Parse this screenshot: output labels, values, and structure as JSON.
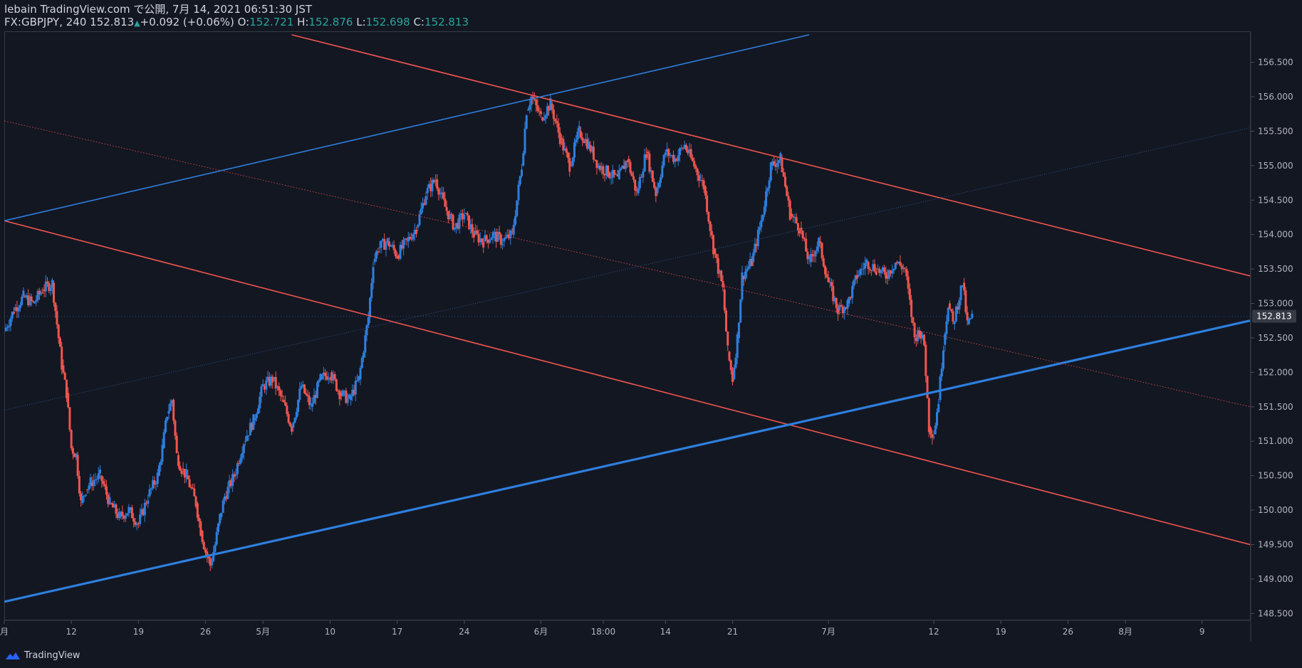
{
  "header": {
    "publisher": "lebain TradingView.com で公開, 7月 14, 2021 06:51:30 JST",
    "symbol_line": "FX:GBPJPY, 240 152.813",
    "change": "+0.092 (+0.06%)",
    "o_label": "O:",
    "o_val": "152.721",
    "h_label": "H:",
    "h_val": "152.876",
    "l_label": "L:",
    "l_val": "152.698",
    "c_label": "C:",
    "c_val": "152.813"
  },
  "footer": {
    "brand": "TradingView"
  },
  "chart_data": {
    "type": "candlestick",
    "symbol": "GBPJPY",
    "last_price": 152.813,
    "ylim": [
      148.4,
      156.95
    ],
    "y_ticks": [
      148.5,
      149.0,
      149.5,
      150.0,
      150.5,
      151.0,
      151.5,
      152.0,
      152.5,
      153.0,
      153.5,
      154.0,
      154.5,
      155.0,
      155.5,
      156.0,
      156.5
    ],
    "y_tick_labels": [
      "148.500",
      "149.000",
      "149.500",
      "150.000",
      "150.500",
      "151.000",
      "151.500",
      "152.000",
      "152.500",
      "153.000",
      "153.500",
      "154.000",
      "154.500",
      "155.000",
      "155.500",
      "156.000",
      "156.500"
    ],
    "x_ticks": [
      {
        "label": "月",
        "day": 0
      },
      {
        "label": "12",
        "day": 7
      },
      {
        "label": "19",
        "day": 14
      },
      {
        "label": "26",
        "day": 21
      },
      {
        "label": "5月",
        "day": 27
      },
      {
        "label": "10",
        "day": 34
      },
      {
        "label": "17",
        "day": 41
      },
      {
        "label": "24",
        "day": 48
      },
      {
        "label": "6月",
        "day": 56
      },
      {
        "label": "18:00",
        "day": 62.5
      },
      {
        "label": "14",
        "day": 69
      },
      {
        "label": "21",
        "day": 76
      },
      {
        "label": "7月",
        "day": 86
      },
      {
        "label": "12",
        "day": 97
      },
      {
        "label": "19",
        "day": 104
      },
      {
        "label": "26",
        "day": 111
      },
      {
        "label": "8月",
        "day": 117
      },
      {
        "label": "9",
        "day": 125
      }
    ],
    "x_range_days": [
      0,
      130
    ],
    "path_points": [
      [
        0,
        152.6
      ],
      [
        1,
        152.9
      ],
      [
        2,
        153.1
      ],
      [
        3,
        153.0
      ],
      [
        4,
        153.2
      ],
      [
        5,
        153.3
      ],
      [
        6,
        152.1
      ],
      [
        6.5,
        151.7
      ],
      [
        7,
        150.9
      ],
      [
        7.5,
        150.8
      ],
      [
        8,
        150.1
      ],
      [
        8.5,
        150.3
      ],
      [
        9,
        150.4
      ],
      [
        10,
        150.5
      ],
      [
        11,
        150.1
      ],
      [
        12,
        149.9
      ],
      [
        13,
        150.0
      ],
      [
        14,
        149.8
      ],
      [
        15,
        150.2
      ],
      [
        16,
        150.5
      ],
      [
        16.5,
        150.9
      ],
      [
        17,
        151.4
      ],
      [
        17.5,
        151.6
      ],
      [
        18,
        150.8
      ],
      [
        18.5,
        150.6
      ],
      [
        19,
        150.5
      ],
      [
        20,
        150.1
      ],
      [
        20.5,
        149.7
      ],
      [
        21,
        149.4
      ],
      [
        21.5,
        149.2
      ],
      [
        22,
        149.5
      ],
      [
        22.5,
        149.9
      ],
      [
        23,
        150.2
      ],
      [
        24,
        150.5
      ],
      [
        25,
        151.0
      ],
      [
        26,
        151.3
      ],
      [
        27,
        151.8
      ],
      [
        28,
        151.9
      ],
      [
        29,
        151.6
      ],
      [
        30,
        151.2
      ],
      [
        31,
        151.8
      ],
      [
        32,
        151.5
      ],
      [
        33,
        151.9
      ],
      [
        34,
        152.0
      ],
      [
        35,
        151.7
      ],
      [
        36,
        151.6
      ],
      [
        37,
        151.9
      ],
      [
        38,
        152.8
      ],
      [
        38.5,
        153.6
      ],
      [
        39,
        153.8
      ],
      [
        40,
        153.9
      ],
      [
        41,
        153.7
      ],
      [
        42,
        153.9
      ],
      [
        43,
        154.1
      ],
      [
        44,
        154.6
      ],
      [
        45,
        154.8
      ],
      [
        46,
        154.4
      ],
      [
        47,
        154.1
      ],
      [
        48,
        154.3
      ],
      [
        49,
        154.0
      ],
      [
        50,
        153.9
      ],
      [
        51,
        154.0
      ],
      [
        52,
        153.9
      ],
      [
        53,
        154.0
      ],
      [
        54,
        155.0
      ],
      [
        54.5,
        155.8
      ],
      [
        55,
        156.0
      ],
      [
        56,
        155.7
      ],
      [
        57,
        155.9
      ],
      [
        58,
        155.4
      ],
      [
        59,
        155.0
      ],
      [
        60,
        155.5
      ],
      [
        61,
        155.3
      ],
      [
        62,
        155.0
      ],
      [
        63,
        154.9
      ],
      [
        64,
        154.8
      ],
      [
        65,
        155.1
      ],
      [
        66,
        154.6
      ],
      [
        67,
        155.2
      ],
      [
        68,
        154.6
      ],
      [
        69,
        155.2
      ],
      [
        70,
        155.1
      ],
      [
        71,
        155.3
      ],
      [
        72,
        155.0
      ],
      [
        73,
        154.7
      ],
      [
        74,
        153.8
      ],
      [
        75,
        153.2
      ],
      [
        75.5,
        152.3
      ],
      [
        76,
        151.9
      ],
      [
        76.5,
        152.5
      ],
      [
        77,
        153.4
      ],
      [
        78,
        153.6
      ],
      [
        79,
        154.2
      ],
      [
        80,
        155.0
      ],
      [
        81,
        155.1
      ],
      [
        82,
        154.3
      ],
      [
        83,
        154.1
      ],
      [
        84,
        153.6
      ],
      [
        85,
        153.9
      ],
      [
        86,
        153.3
      ],
      [
        87,
        152.9
      ],
      [
        88,
        153.0
      ],
      [
        89,
        153.4
      ],
      [
        90,
        153.6
      ],
      [
        91,
        153.5
      ],
      [
        92,
        153.4
      ],
      [
        93,
        153.6
      ],
      [
        94,
        153.5
      ],
      [
        95,
        152.5
      ],
      [
        95.5,
        152.6
      ],
      [
        96,
        152.4
      ],
      [
        96.5,
        151.2
      ],
      [
        97,
        151.1
      ],
      [
        97.5,
        151.6
      ],
      [
        98,
        152.4
      ],
      [
        98.5,
        153.0
      ],
      [
        99,
        152.7
      ],
      [
        100,
        153.3
      ],
      [
        100.5,
        152.7
      ],
      [
        101,
        152.8
      ]
    ],
    "trendlines": [
      {
        "from": [
          0,
          154.2
        ],
        "to": [
          130,
          149.5
        ],
        "color": "#f0554f",
        "width": 1.6
      },
      {
        "from": [
          30,
          156.9
        ],
        "to": [
          130,
          153.4
        ],
        "color": "#f0554f",
        "width": 1.6
      },
      {
        "from": [
          0,
          154.2
        ],
        "to": [
          84,
          156.9
        ],
        "color": "#2e7fde",
        "width": 1.6
      },
      {
        "from": [
          0,
          148.67
        ],
        "to": [
          130,
          152.75
        ],
        "color": "#2e7fde",
        "width": 3.2
      },
      {
        "from": [
          0,
          155.65
        ],
        "to": [
          130,
          151.5
        ],
        "color": "#c0433f",
        "width": 0.8,
        "dash": "2,2"
      },
      {
        "from": [
          0,
          151.45
        ],
        "to": [
          130,
          155.55
        ],
        "color": "#2a5ea8",
        "width": 0.8,
        "dash": "1,2"
      }
    ],
    "colors": {
      "up": "#2e7fde",
      "down": "#f0554f",
      "bg": "#131722",
      "axis_text": "#b2b5be",
      "last_price_bg": "#363a45"
    }
  }
}
